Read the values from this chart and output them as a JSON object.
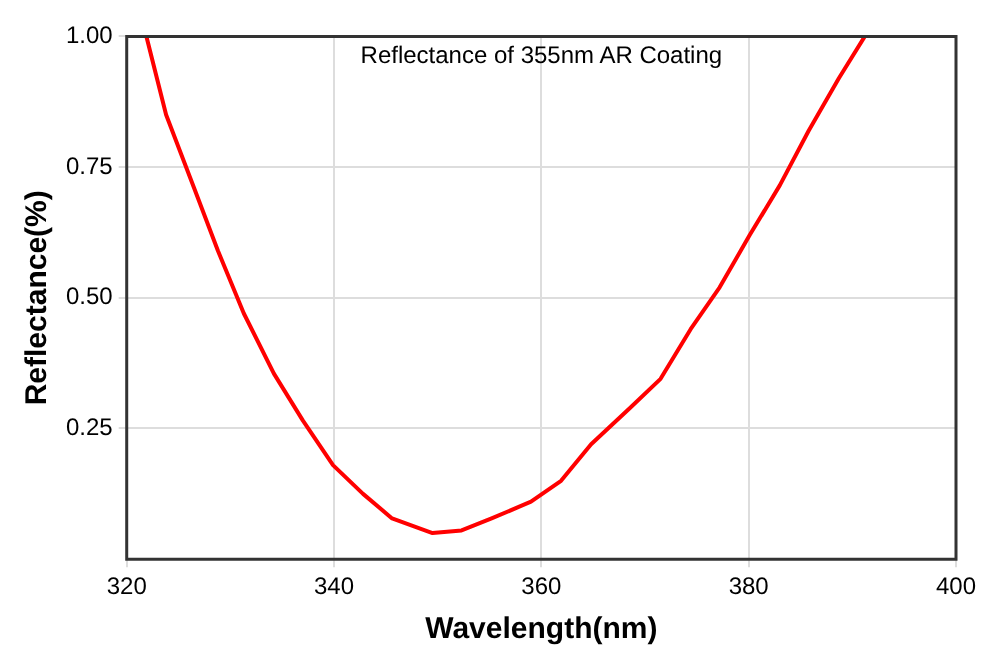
{
  "chart_data": {
    "type": "line",
    "title": "Reflectance of 355nm AR Coating",
    "xlabel": "Wavelength(nm)",
    "ylabel": "Reflectance(%)",
    "x": [
      321.9,
      323.8,
      326.5,
      328.8,
      331.3,
      334.2,
      337,
      339.9,
      342.8,
      345.6,
      349.5,
      352.3,
      355.2,
      359,
      361.9,
      364.8,
      368.6,
      371.5,
      374.4,
      377.2,
      380.1,
      383,
      385.8,
      388.7,
      391.2
    ],
    "series": [
      {
        "color": "#ff0000",
        "values": [
          1.0,
          0.85,
          0.71,
          0.59,
          0.47,
          0.355,
          0.265,
          0.18,
          0.125,
          0.078,
          0.05,
          0.055,
          0.078,
          0.11,
          0.15,
          0.22,
          0.29,
          0.345,
          0.44,
          0.52,
          0.62,
          0.715,
          0.82,
          0.92,
          1.0
        ]
      }
    ],
    "xlim": [
      320,
      400
    ],
    "xticks": [
      320,
      340,
      360,
      380,
      400
    ],
    "ylim": [
      0,
      1
    ],
    "yticks": [
      {
        "value": 0.25,
        "label": "0.25"
      },
      {
        "value": 0.5,
        "label": "0.50"
      },
      {
        "value": 0.75,
        "label": "0.75"
      },
      {
        "value": 1,
        "label": "1.00"
      }
    ],
    "grid": true,
    "legend": false,
    "marker": "none",
    "line_style": "solid"
  }
}
